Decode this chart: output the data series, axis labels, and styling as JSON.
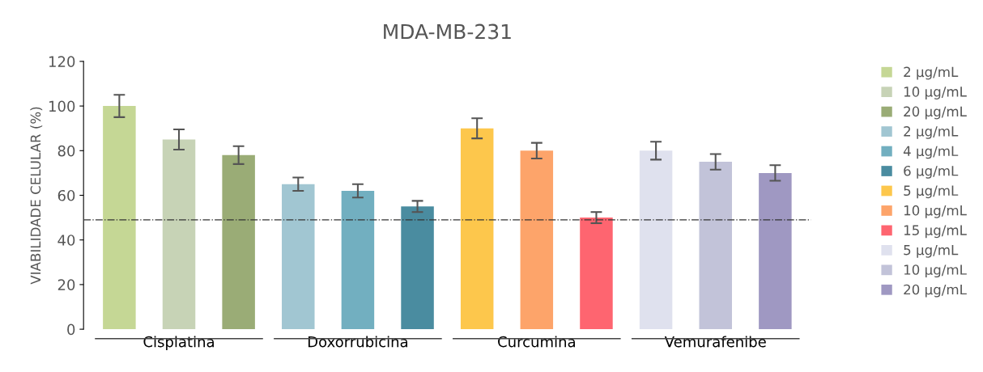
{
  "chart_data": {
    "type": "bar",
    "title": "MDA-MB-231",
    "ylabel": "VIABILIDADE CELULAR (%)",
    "categories": [
      "Cisplatina",
      "Doxorrubicina",
      "Curcumina",
      "Vemurafenibe"
    ],
    "series": [
      {
        "name": "2 µg/mL",
        "color": "#c5d795",
        "values": [
          100,
          null,
          null,
          null
        ],
        "errors": [
          5,
          null,
          null,
          null
        ]
      },
      {
        "name": "10 µg/mL",
        "color": "#c7d3b6",
        "values": [
          85,
          null,
          null,
          null
        ],
        "errors": [
          4.5,
          null,
          null,
          null
        ]
      },
      {
        "name": "20 µg/mL",
        "color": "#9aac76",
        "values": [
          78,
          null,
          null,
          null
        ],
        "errors": [
          4,
          null,
          null,
          null
        ]
      },
      {
        "name": "2 µg/mL",
        "color": "#a1c6d2",
        "values": [
          null,
          65,
          null,
          null
        ],
        "errors": [
          null,
          3,
          null,
          null
        ]
      },
      {
        "name": "4 µg/mL",
        "color": "#72afc0",
        "values": [
          null,
          62,
          null,
          null
        ],
        "errors": [
          null,
          3,
          null,
          null
        ]
      },
      {
        "name": "6 µg/mL",
        "color": "#4a8ca0",
        "values": [
          null,
          55,
          null,
          null
        ],
        "errors": [
          null,
          2.5,
          null,
          null
        ]
      },
      {
        "name": "5 µg/mL",
        "color": "#fdc74c",
        "values": [
          null,
          null,
          90,
          null
        ],
        "errors": [
          null,
          null,
          4.5,
          null
        ]
      },
      {
        "name": "10 µg/mL",
        "color": "#fda46a",
        "values": [
          null,
          null,
          80,
          null
        ],
        "errors": [
          null,
          null,
          3.5,
          null
        ]
      },
      {
        "name": "15 µg/mL",
        "color": "#fe6570",
        "values": [
          null,
          null,
          50,
          null
        ],
        "errors": [
          null,
          null,
          2.5,
          null
        ]
      },
      {
        "name": "5 µg/mL",
        "color": "#dfe1ee",
        "values": [
          null,
          null,
          null,
          80
        ],
        "errors": [
          null,
          null,
          null,
          4
        ]
      },
      {
        "name": "10 µg/mL",
        "color": "#c2c3d9",
        "values": [
          null,
          null,
          null,
          75
        ],
        "errors": [
          null,
          null,
          null,
          3.5
        ]
      },
      {
        "name": "20 µg/mL",
        "color": "#9f98c2",
        "values": [
          null,
          null,
          null,
          70
        ],
        "errors": [
          null,
          null,
          null,
          3.5
        ]
      }
    ],
    "ylim": [
      0,
      120
    ],
    "yticks": [
      0,
      20,
      40,
      60,
      80,
      100,
      120
    ],
    "ref_lines": [
      {
        "axis": "y",
        "value": 49,
        "line_style": "dashdot",
        "color": "#333333"
      }
    ],
    "legend": "right",
    "grid": false
  }
}
